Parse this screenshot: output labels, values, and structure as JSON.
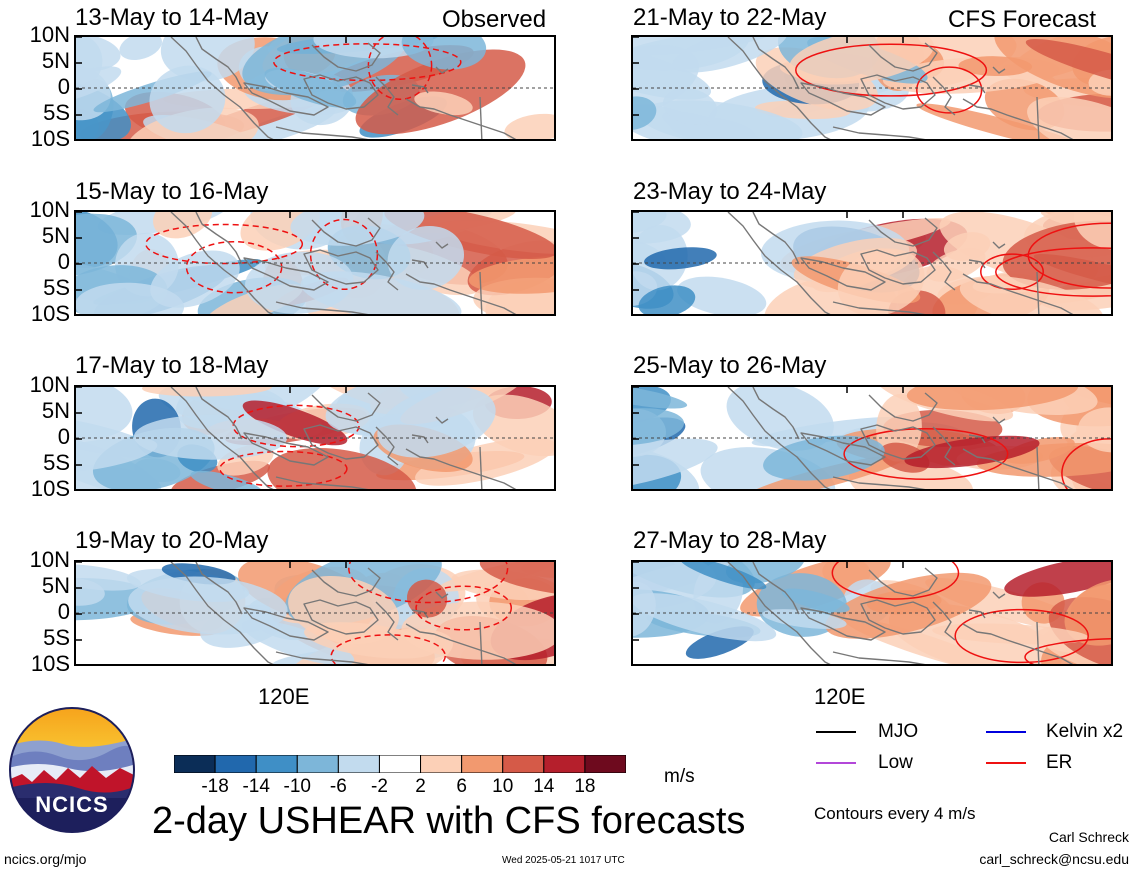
{
  "left_column": {
    "corner_label": "Observed",
    "panels": [
      {
        "title": "13-May to 14-May"
      },
      {
        "title": "15-May to 16-May"
      },
      {
        "title": "17-May to 18-May"
      },
      {
        "title": "19-May to 20-May"
      }
    ]
  },
  "right_column": {
    "corner_label": "CFS Forecast",
    "panels": [
      {
        "title": "21-May to 22-May"
      },
      {
        "title": "23-May to 24-May"
      },
      {
        "title": "25-May to 26-May"
      },
      {
        "title": "27-May to 28-May"
      }
    ]
  },
  "lat_labels": [
    "10N",
    "5N",
    "0",
    "5S",
    "10S"
  ],
  "x_tick_label": "120E",
  "colorbar": {
    "labels": [
      "-18",
      "-14",
      "-10",
      "-6",
      "-2",
      "2",
      "6",
      "10",
      "14",
      "18"
    ],
    "colors": [
      "#0b2d57",
      "#2168ad",
      "#3f8fc6",
      "#7db6d9",
      "#c2dbee",
      "#ffffff",
      "#fcd0b7",
      "#f2996f",
      "#d55a48",
      "#b51f2c",
      "#6e0a1e"
    ],
    "units": "m/s"
  },
  "legend": {
    "items": [
      {
        "label": "MJO",
        "color": "#000000"
      },
      {
        "label": "Kelvin x2",
        "color": "#0000dd"
      },
      {
        "label": "Low",
        "color": "#b347d9"
      },
      {
        "label": "ER",
        "color": "#ee1111"
      }
    ],
    "contour_note": "Contours every 4 m/s"
  },
  "logo": {
    "text": "NCICS"
  },
  "main_title": "2-day USHEAR with CFS forecasts",
  "footer": {
    "left_url": "ncics.org/mjo",
    "timestamp": "Wed 2025-05-21 1017 UTC",
    "author": "Carl Schreck",
    "email": "carl_schreck@ncsu.edu"
  }
}
